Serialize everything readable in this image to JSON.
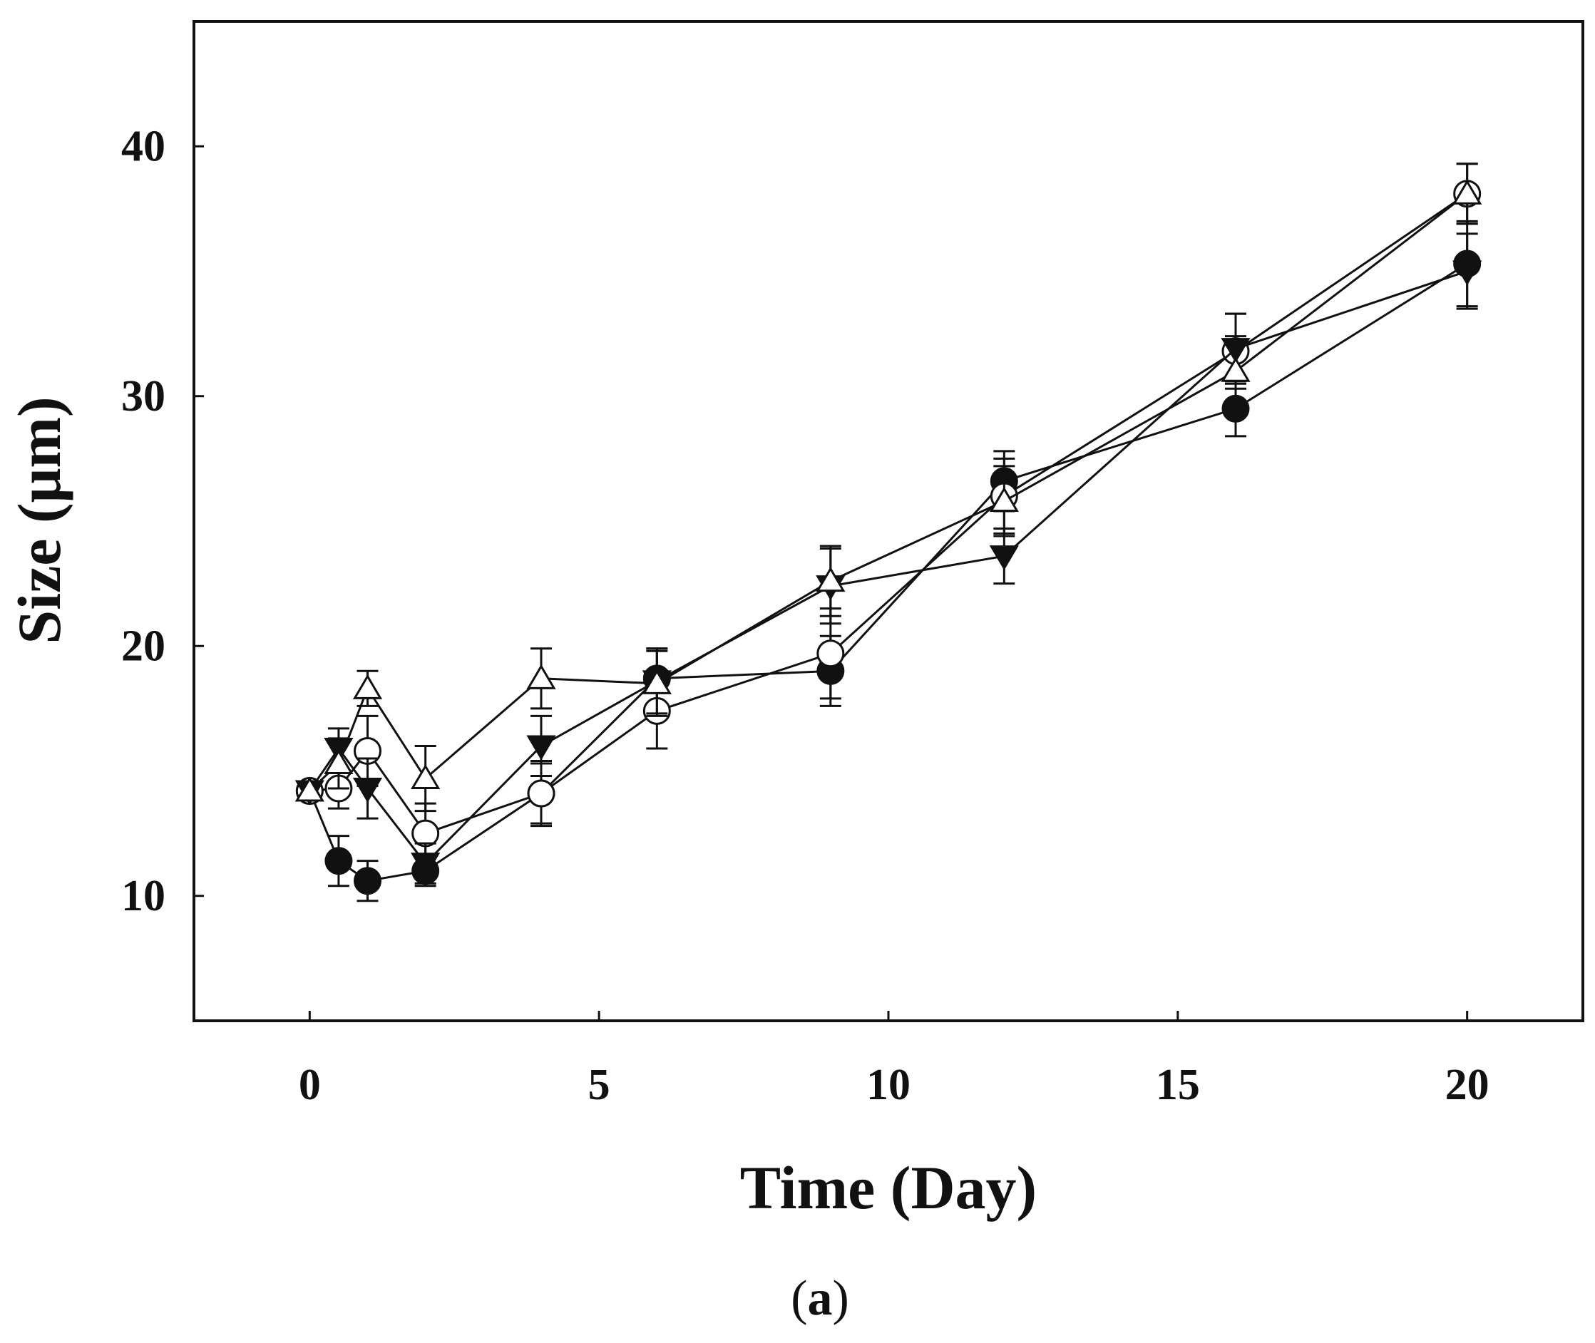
{
  "chart_data": {
    "type": "line",
    "title": "",
    "xlabel": "Time (Day)",
    "ylabel": "Size (μm)",
    "xlim": [
      -2,
      22
    ],
    "ylim": [
      5,
      45
    ],
    "xticks": [
      0,
      5,
      10,
      15,
      20
    ],
    "yticks": [
      10,
      20,
      30,
      40
    ],
    "grid": false,
    "legend": "none",
    "caption": {
      "open": "(",
      "letter": "a",
      "close": ")"
    },
    "series": [
      {
        "name": "filled-circle",
        "marker": "circle",
        "filled": true,
        "x": [
          0,
          0.5,
          1,
          2,
          4,
          6,
          9,
          12,
          16,
          20
        ],
        "y": [
          14.2,
          11.4,
          10.6,
          11.0,
          14.1,
          18.7,
          19.0,
          26.6,
          29.5,
          35.3
        ],
        "err": [
          0.3,
          1.0,
          0.8,
          0.6,
          1.2,
          1.2,
          1.4,
          1.2,
          1.1,
          1.7
        ]
      },
      {
        "name": "open-circle",
        "marker": "circle",
        "filled": false,
        "x": [
          0,
          0.5,
          1,
          2,
          4,
          6,
          9,
          12,
          16,
          20
        ],
        "y": [
          14.2,
          14.3,
          15.8,
          12.5,
          14.1,
          17.4,
          19.7,
          26.0,
          31.8,
          38.1
        ],
        "err": [
          0.3,
          0.8,
          1.4,
          1.2,
          1.3,
          1.5,
          1.8,
          1.5,
          1.5,
          1.2
        ]
      },
      {
        "name": "filled-triangle-down",
        "marker": "triangle-down",
        "filled": true,
        "x": [
          0,
          0.5,
          1,
          2,
          4,
          6,
          9,
          12,
          16,
          20
        ],
        "y": [
          14.2,
          15.9,
          14.3,
          11.3,
          16.0,
          18.6,
          22.4,
          23.6,
          31.9,
          35.0
        ],
        "err": [
          0.3,
          0.8,
          1.2,
          0.8,
          1.2,
          1.3,
          1.5,
          1.1,
          1.4,
          1.5
        ]
      },
      {
        "name": "open-triangle-up",
        "marker": "triangle-up",
        "filled": false,
        "x": [
          0,
          0.5,
          1,
          2,
          4,
          6,
          9,
          12,
          16,
          20
        ],
        "y": [
          14.2,
          15.3,
          18.3,
          14.7,
          18.7,
          18.5,
          22.6,
          25.8,
          31.0,
          38.1
        ],
        "err": [
          0.3,
          1.0,
          0.7,
          1.3,
          1.2,
          1.3,
          1.4,
          1.4,
          1.4,
          1.2
        ]
      }
    ]
  }
}
